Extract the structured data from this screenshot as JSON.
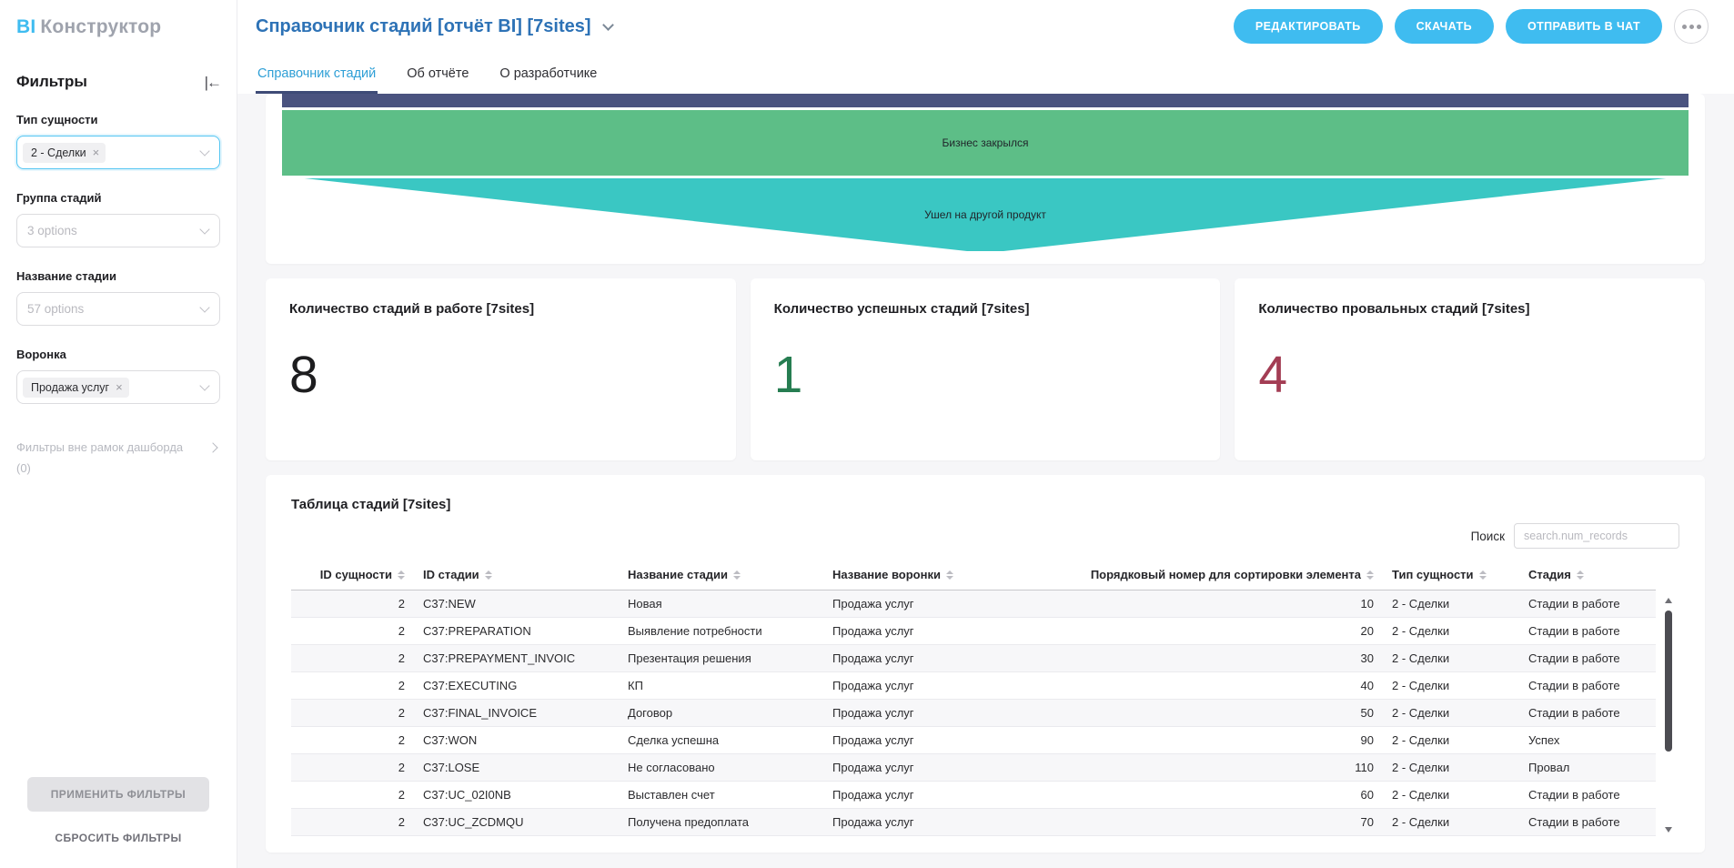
{
  "brand": {
    "bi": "BI",
    "name": "Конструктор"
  },
  "colors": {
    "accent": "#3fbcf0",
    "title_blue": "#2d72b6",
    "tab_active": "#2e9fd6",
    "tab_underline": "#3e4b77",
    "funnel_navy": "#4a537f",
    "funnel_green": "#5dbe87",
    "funnel_teal": "#3ac7c3",
    "kpi_neutral": "#1d1d1f",
    "kpi_success": "#267d51",
    "kpi_fail": "#a33d54"
  },
  "sidebar": {
    "title": "Фильтры",
    "collapse_icon": "|←",
    "filters": [
      {
        "label": "Тип сущности",
        "chips": [
          "2 - Сделки"
        ],
        "placeholder": "",
        "active": true
      },
      {
        "label": "Группа стадий",
        "chips": [],
        "placeholder": "3 options",
        "active": false
      },
      {
        "label": "Название стадии",
        "chips": [],
        "placeholder": "57 options",
        "active": false
      },
      {
        "label": "Воронка",
        "chips": [
          "Продажа услуг"
        ],
        "placeholder": "",
        "active": false
      }
    ],
    "outer_filters_label": "Фильтры вне рамок дашборда",
    "outer_filters_count": "(0)",
    "apply_label": "ПРИМЕНИТЬ ФИЛЬТРЫ",
    "reset_label": "СБРОСИТЬ ФИЛЬТРЫ"
  },
  "header": {
    "title": "Справочник стадий [отчёт BI] [7sites]",
    "actions": [
      {
        "label": "РЕДАКТИРОВАТЬ",
        "name": "edit-button"
      },
      {
        "label": "СКАЧАТЬ",
        "name": "download-button"
      },
      {
        "label": "ОТПРАВИТЬ В ЧАТ",
        "name": "send-to-chat-button"
      }
    ]
  },
  "tabs": [
    {
      "label": "Справочник стадий",
      "active": true
    },
    {
      "label": "Об отчёте",
      "active": false
    },
    {
      "label": "О разработчике",
      "active": false
    }
  ],
  "funnel": {
    "segments": [
      {
        "label": "",
        "color": "#4a537f",
        "shape": "bar-clipped"
      },
      {
        "label": "Бизнес закрылся",
        "color": "#5dbe87",
        "shape": "bar"
      },
      {
        "label": "Ушел на другой продукт",
        "color": "#3ac7c3",
        "shape": "taper"
      }
    ]
  },
  "kpis": [
    {
      "title": "Количество стадий в работе [7sites]",
      "value": "8",
      "color": "#1d1d1f"
    },
    {
      "title": "Количество успешных стадий [7sites]",
      "value": "1",
      "color": "#267d51"
    },
    {
      "title": "Количество провальных стадий [7sites]",
      "value": "4",
      "color": "#a33d54"
    }
  ],
  "table": {
    "title": "Таблица стадий [7sites]",
    "search_label": "Поиск",
    "search_placeholder": "search.num_records",
    "columns": [
      {
        "label": "ID сущности",
        "align": "right",
        "width": "9%"
      },
      {
        "label": "ID стадии",
        "align": "left",
        "width": "15%"
      },
      {
        "label": "Название стадии",
        "align": "left",
        "width": "15%"
      },
      {
        "label": "Название воронки",
        "align": "left",
        "width": "18%"
      },
      {
        "label": "Порядковый номер для сортировки элемента",
        "align": "right",
        "width": "23%"
      },
      {
        "label": "Тип сущности",
        "align": "left",
        "width": "10%"
      },
      {
        "label": "Стадия",
        "align": "left",
        "width": "10%"
      }
    ],
    "rows": [
      [
        "2",
        "C37:NEW",
        "Новая",
        "Продажа услуг",
        "10",
        "2 - Сделки",
        "Стадии в работе"
      ],
      [
        "2",
        "C37:PREPARATION",
        "Выявление потребности",
        "Продажа услуг",
        "20",
        "2 - Сделки",
        "Стадии в работе"
      ],
      [
        "2",
        "C37:PREPAYMENT_INVOIC",
        "Презентация решения",
        "Продажа услуг",
        "30",
        "2 - Сделки",
        "Стадии в работе"
      ],
      [
        "2",
        "C37:EXECUTING",
        "КП",
        "Продажа услуг",
        "40",
        "2 - Сделки",
        "Стадии в работе"
      ],
      [
        "2",
        "C37:FINAL_INVOICE",
        "Договор",
        "Продажа услуг",
        "50",
        "2 - Сделки",
        "Стадии в работе"
      ],
      [
        "2",
        "C37:WON",
        "Сделка успешна",
        "Продажа услуг",
        "90",
        "2 - Сделки",
        "Успех"
      ],
      [
        "2",
        "C37:LOSE",
        "Не согласовано",
        "Продажа услуг",
        "110",
        "2 - Сделки",
        "Провал"
      ],
      [
        "2",
        "C37:UC_02I0NB",
        "Выставлен счет",
        "Продажа услуг",
        "60",
        "2 - Сделки",
        "Стадии в работе"
      ],
      [
        "2",
        "C37:UC_ZCDMQU",
        "Получена предоплата",
        "Продажа услуг",
        "70",
        "2 - Сделки",
        "Стадии в работе"
      ]
    ]
  }
}
